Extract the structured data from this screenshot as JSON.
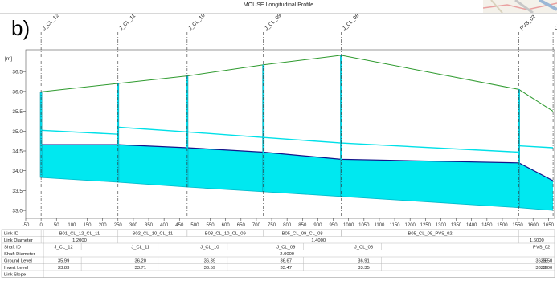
{
  "window": {
    "title": "MOUSE Longitudinal Profile"
  },
  "panel_label": "b)",
  "colors": {
    "water": "#00e8f0",
    "hgl": "#00e0e8",
    "ground": "#2e9a2e",
    "invert": "#14148a",
    "shaft": "#00d8e8"
  },
  "chart_data": {
    "type": "area",
    "title": "MOUSE Longitudinal Profile",
    "ylabel": "[m]",
    "xlim": [
      -50,
      1670
    ],
    "ylim": [
      32.8,
      37.05
    ],
    "yticks": [
      33.0,
      33.5,
      34.0,
      34.5,
      35.0,
      35.5,
      36.0,
      36.5
    ],
    "ytick_labels": [
      "33.0",
      "33.5",
      "34.0",
      "34.5",
      "35.0",
      "35.5",
      "36.0",
      "36.5"
    ],
    "xticks": [
      -50,
      0,
      50,
      100,
      150,
      200,
      250,
      300,
      350,
      400,
      450,
      500,
      550,
      600,
      650,
      700,
      750,
      800,
      850,
      900,
      950,
      1000,
      1050,
      1100,
      1150,
      1200,
      1250,
      1300,
      1350,
      1400,
      1450,
      1500,
      1550,
      1600,
      1650
    ],
    "xtick_labels": [
      "-50",
      "0",
      "50",
      "100",
      "150",
      "200",
      "250",
      "300",
      "350",
      "400",
      "450",
      "500",
      "550",
      "600",
      "650",
      "700",
      "750",
      "800",
      "850",
      "900",
      "950",
      "1000",
      "1050",
      "1100",
      "1150",
      "1200",
      "1250",
      "1300",
      "1350",
      "1400",
      "1450",
      "1500",
      "1550",
      "1600",
      "1650"
    ],
    "nodes": [
      {
        "name": "J_CL_12",
        "x": 0
      },
      {
        "name": "J_CL_11",
        "x": 250
      },
      {
        "name": "J_CL_10",
        "x": 475
      },
      {
        "name": "J_CL_09",
        "x": 723
      },
      {
        "name": "J_CL_08",
        "x": 976
      },
      {
        "name": "PVS_02",
        "x": 1554
      },
      {
        "name": "OUT_PIST",
        "x": 1665
      }
    ],
    "series": [
      {
        "key": "ground",
        "x": [
          0,
          250,
          475,
          723,
          976,
          1554,
          1665
        ],
        "y": [
          35.99,
          36.2,
          36.39,
          36.67,
          36.91,
          36.05,
          35.5
        ]
      },
      {
        "key": "hgl",
        "x": [
          0,
          250,
          250,
          475,
          723,
          976,
          1554,
          1554,
          1665
        ],
        "y": [
          35.02,
          34.92,
          35.1,
          34.98,
          34.84,
          34.7,
          34.47,
          34.63,
          34.58
        ]
      },
      {
        "key": "water",
        "x": [
          0,
          250,
          475,
          723,
          976,
          1554,
          1665
        ],
        "y": [
          34.66,
          34.66,
          34.58,
          34.47,
          34.29,
          34.2,
          33.75
        ]
      },
      {
        "key": "invert",
        "x": [
          0,
          250,
          475,
          723,
          976,
          1554,
          1665
        ],
        "y": [
          33.83,
          33.71,
          33.59,
          33.47,
          33.35,
          33.07,
          33.0
        ]
      }
    ]
  },
  "table": {
    "row_labels": [
      "Link ID",
      "Link Diameter",
      "Shaft ID",
      "Shaft Diameter",
      "Ground Level",
      "Invert Level",
      "Link Slope"
    ],
    "links": [
      {
        "from": 0,
        "to": 250,
        "id": "B01_CL_12_CL_11"
      },
      {
        "from": 250,
        "to": 475,
        "id": "B02_CL_10_CL_11"
      },
      {
        "from": 475,
        "to": 723,
        "id": "B03_CL_10_CL_09"
      },
      {
        "from": 723,
        "to": 976,
        "id": "B05_CL_09_CL_08"
      },
      {
        "from": 976,
        "to": 1554,
        "id": "B05_CL_08_PVS_02"
      }
    ],
    "diameters": [
      {
        "from": 0,
        "to": 250,
        "value": "1.2000"
      },
      {
        "from": 250,
        "to": 1554,
        "value": "1.4000"
      },
      {
        "from": 1554,
        "to": 1670,
        "value": "1.6000"
      }
    ],
    "shaft_ids": [
      "J_CL_12",
      "J_CL_11",
      "J_CL_10",
      "J_CL_09",
      "J_CL_08",
      "PVS_02"
    ],
    "shaft_diameter": "2.0000",
    "ground_levels": [
      "35.99",
      "36.20",
      "36.39",
      "36.67",
      "36.91",
      "36.05",
      "35.50"
    ],
    "invert_levels": [
      "33.83",
      "33.71",
      "33.59",
      "33.47",
      "33.35",
      "33.07",
      "33.00"
    ]
  }
}
